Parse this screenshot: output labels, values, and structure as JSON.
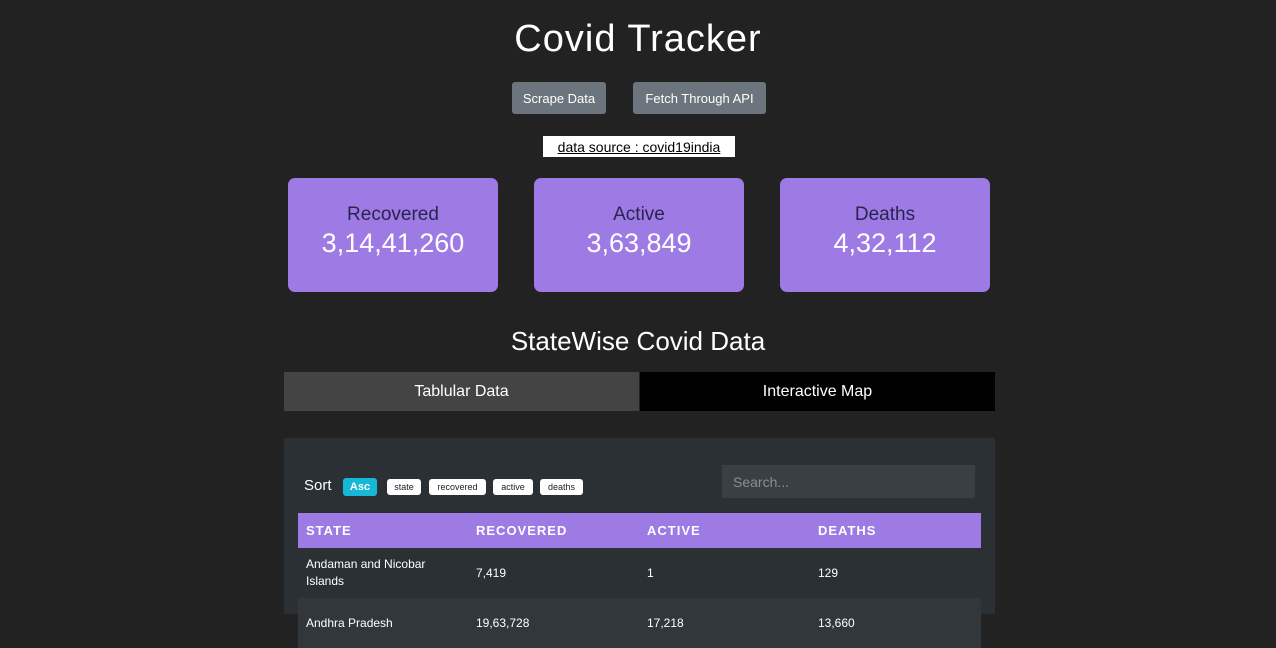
{
  "header": {
    "title": "Covid Tracker",
    "buttons": [
      "Scrape Data",
      "Fetch Through API"
    ],
    "source": "data source : covid19india"
  },
  "cards": [
    {
      "label": "Recovered",
      "value": "3,14,41,260"
    },
    {
      "label": "Active",
      "value": "3,63,849"
    },
    {
      "label": "Deaths",
      "value": "4,32,112"
    }
  ],
  "section": {
    "title": "StateWise Covid Data",
    "tabs": [
      "Tablular Data",
      "Interactive Map"
    ]
  },
  "controls": {
    "sort": "Sort",
    "order": "Asc",
    "keys": [
      "state",
      "recovered",
      "active",
      "deaths"
    ],
    "search": "Search..."
  },
  "table": {
    "columns": [
      "STATE",
      "RECOVERED",
      "ACTIVE",
      "DEATHS"
    ],
    "rows": [
      [
        "Andaman and Nicobar Islands",
        "7,419",
        "1",
        "129"
      ],
      [
        "Andhra Pradesh",
        "19,63,728",
        "17,218",
        "13,660"
      ]
    ]
  }
}
